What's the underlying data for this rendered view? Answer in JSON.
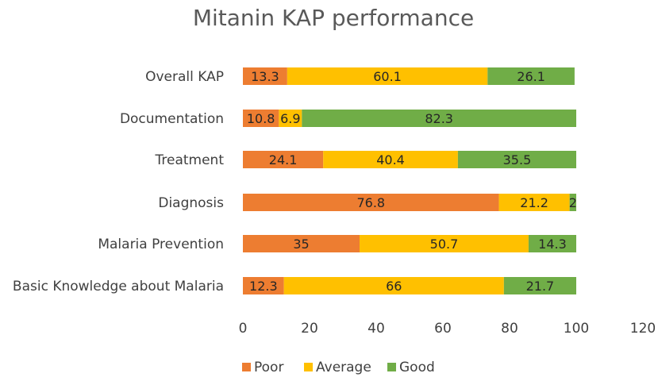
{
  "chart_data": {
    "type": "bar",
    "orientation": "horizontal",
    "stacked": true,
    "title": "Mitanin KAP performance",
    "categories": [
      "Overall KAP",
      "Documentation",
      "Treatment",
      "Diagnosis",
      "Malaria Prevention",
      "Basic Knowledge about Malaria"
    ],
    "series": [
      {
        "name": "Poor",
        "color": "#ED7D31",
        "values": [
          13.3,
          10.8,
          24.1,
          76.8,
          35,
          12.3
        ]
      },
      {
        "name": "Average",
        "color": "#FFC000",
        "values": [
          60.1,
          6.9,
          40.4,
          21.2,
          50.7,
          66
        ]
      },
      {
        "name": "Good",
        "color": "#70AD47",
        "values": [
          26.1,
          82.3,
          35.5,
          2,
          14.3,
          21.7
        ]
      }
    ],
    "x_ticks": [
      "0",
      "20",
      "40",
      "60",
      "80",
      "100",
      "120"
    ],
    "xlim": [
      0,
      120
    ],
    "xlabel": "",
    "ylabel": "",
    "grid": false,
    "legend_position": "bottom"
  }
}
